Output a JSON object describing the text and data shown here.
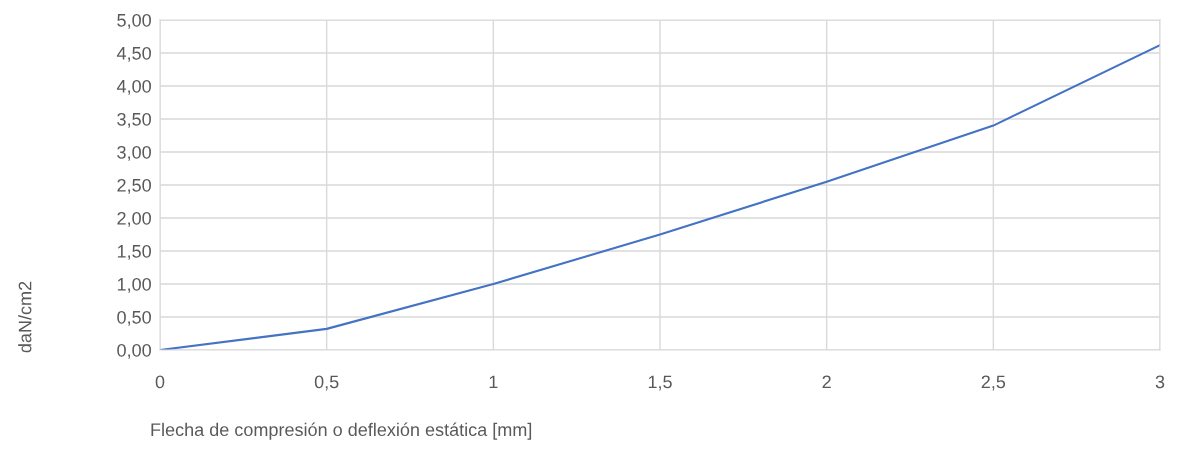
{
  "chart_data": {
    "type": "line",
    "xlabel": "Flecha de compresión o deflexión estática [mm]",
    "ylabel": "daN/cm2",
    "x": [
      0,
      0.5,
      1,
      1.5,
      2,
      2.5,
      3
    ],
    "series": [
      {
        "color": "#4472c4",
        "values": [
          0,
          0.32,
          1.0,
          1.75,
          2.55,
          3.4,
          4.62
        ]
      }
    ],
    "xlim": [
      0,
      3
    ],
    "xticks": [
      0,
      {
        "value": 0.5,
        "label": "0,5"
      },
      1,
      {
        "value": 1.5,
        "label": "1,5"
      },
      2,
      {
        "value": 2.5,
        "label": "2,5"
      },
      3
    ],
    "ylim": [
      0,
      5
    ],
    "yticks": [
      {
        "value": 0,
        "label": "0,00"
      },
      {
        "value": 0.5,
        "label": "0,50"
      },
      {
        "value": 1,
        "label": "1,00"
      },
      {
        "value": 1.5,
        "label": "1,50"
      },
      {
        "value": 2,
        "label": "2,00"
      },
      {
        "value": 2.5,
        "label": "2,50"
      },
      {
        "value": 3,
        "label": "3,00"
      },
      {
        "value": 3.5,
        "label": "3,50"
      },
      {
        "value": 4,
        "label": "4,00"
      },
      {
        "value": 4.5,
        "label": "4,50"
      },
      {
        "value": 5,
        "label": "5,00"
      }
    ],
    "grid": true,
    "marker": "none",
    "line_style": "solid"
  }
}
